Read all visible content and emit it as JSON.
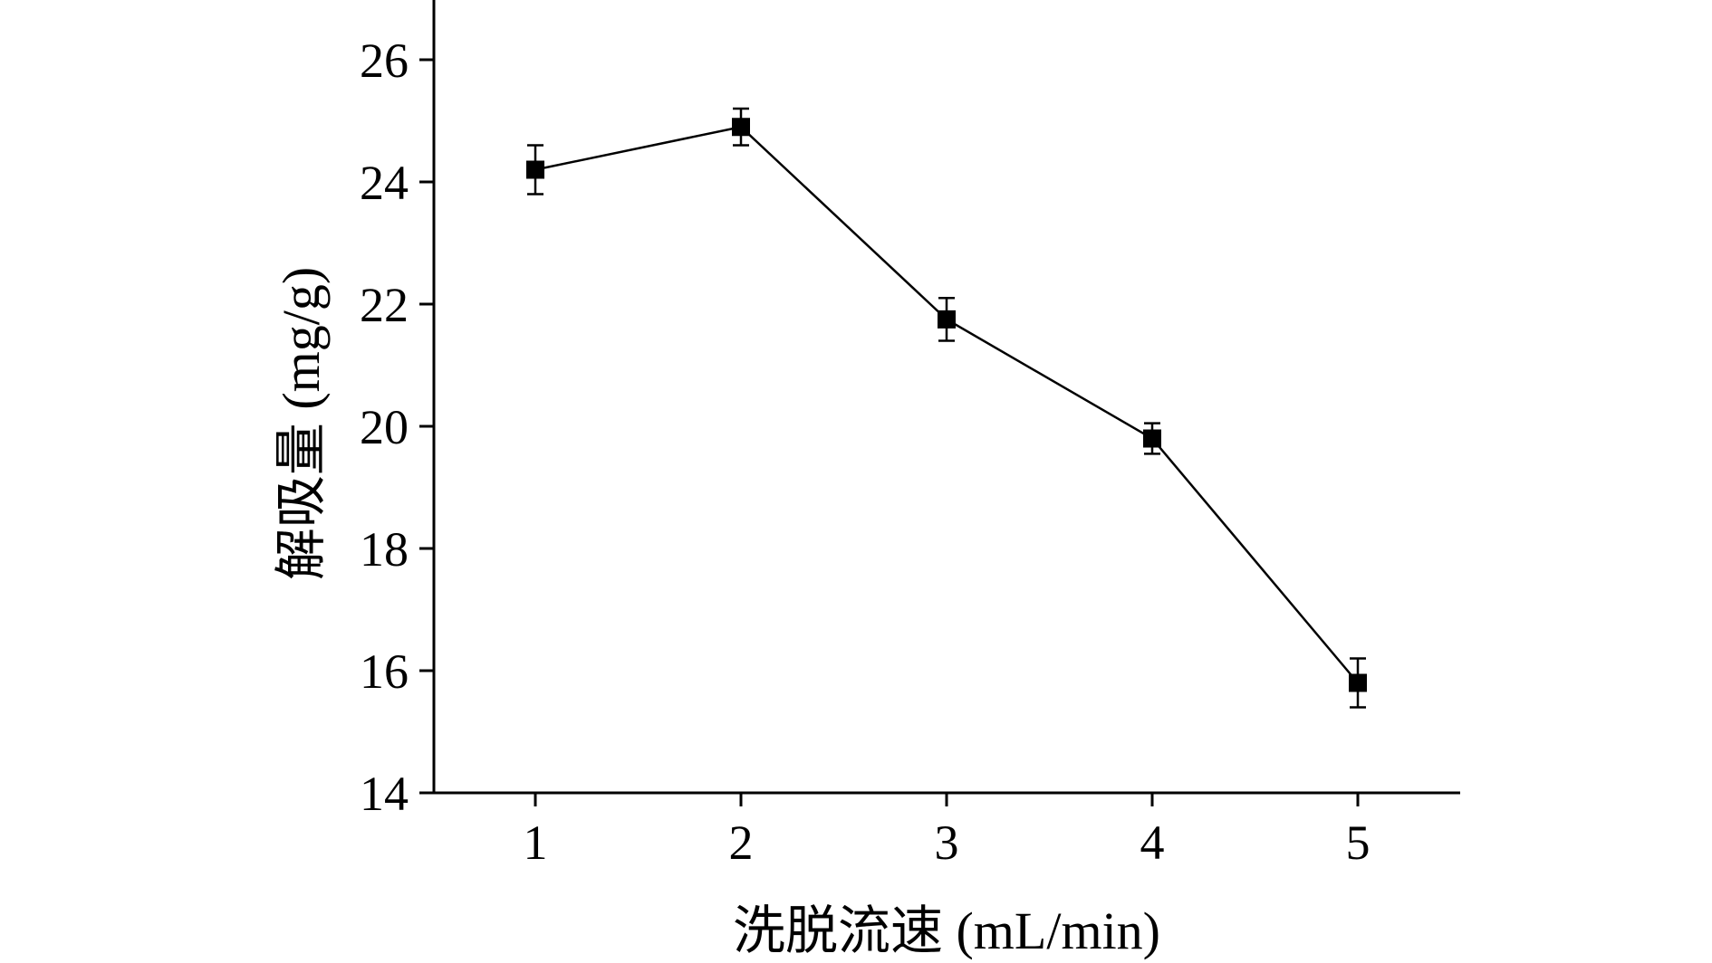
{
  "chart_data": {
    "type": "line",
    "title": "",
    "xlabel": "洗脱流速 (mL/min)",
    "ylabel": "解吸量 (mg/g)",
    "x": [
      1,
      2,
      3,
      4,
      5
    ],
    "series": [
      {
        "values": [
          24.2,
          24.9,
          21.75,
          19.8,
          15.8
        ],
        "errors": [
          0.4,
          0.3,
          0.35,
          0.25,
          0.4
        ]
      }
    ],
    "xticks": [
      1,
      2,
      3,
      4,
      5
    ],
    "yticks": [
      14,
      16,
      18,
      20,
      22,
      24,
      26
    ],
    "xlim": [
      0.5,
      5.5
    ],
    "ylim": [
      14,
      27
    ],
    "grid": false,
    "marker": "filled-square",
    "color": "#000000"
  }
}
